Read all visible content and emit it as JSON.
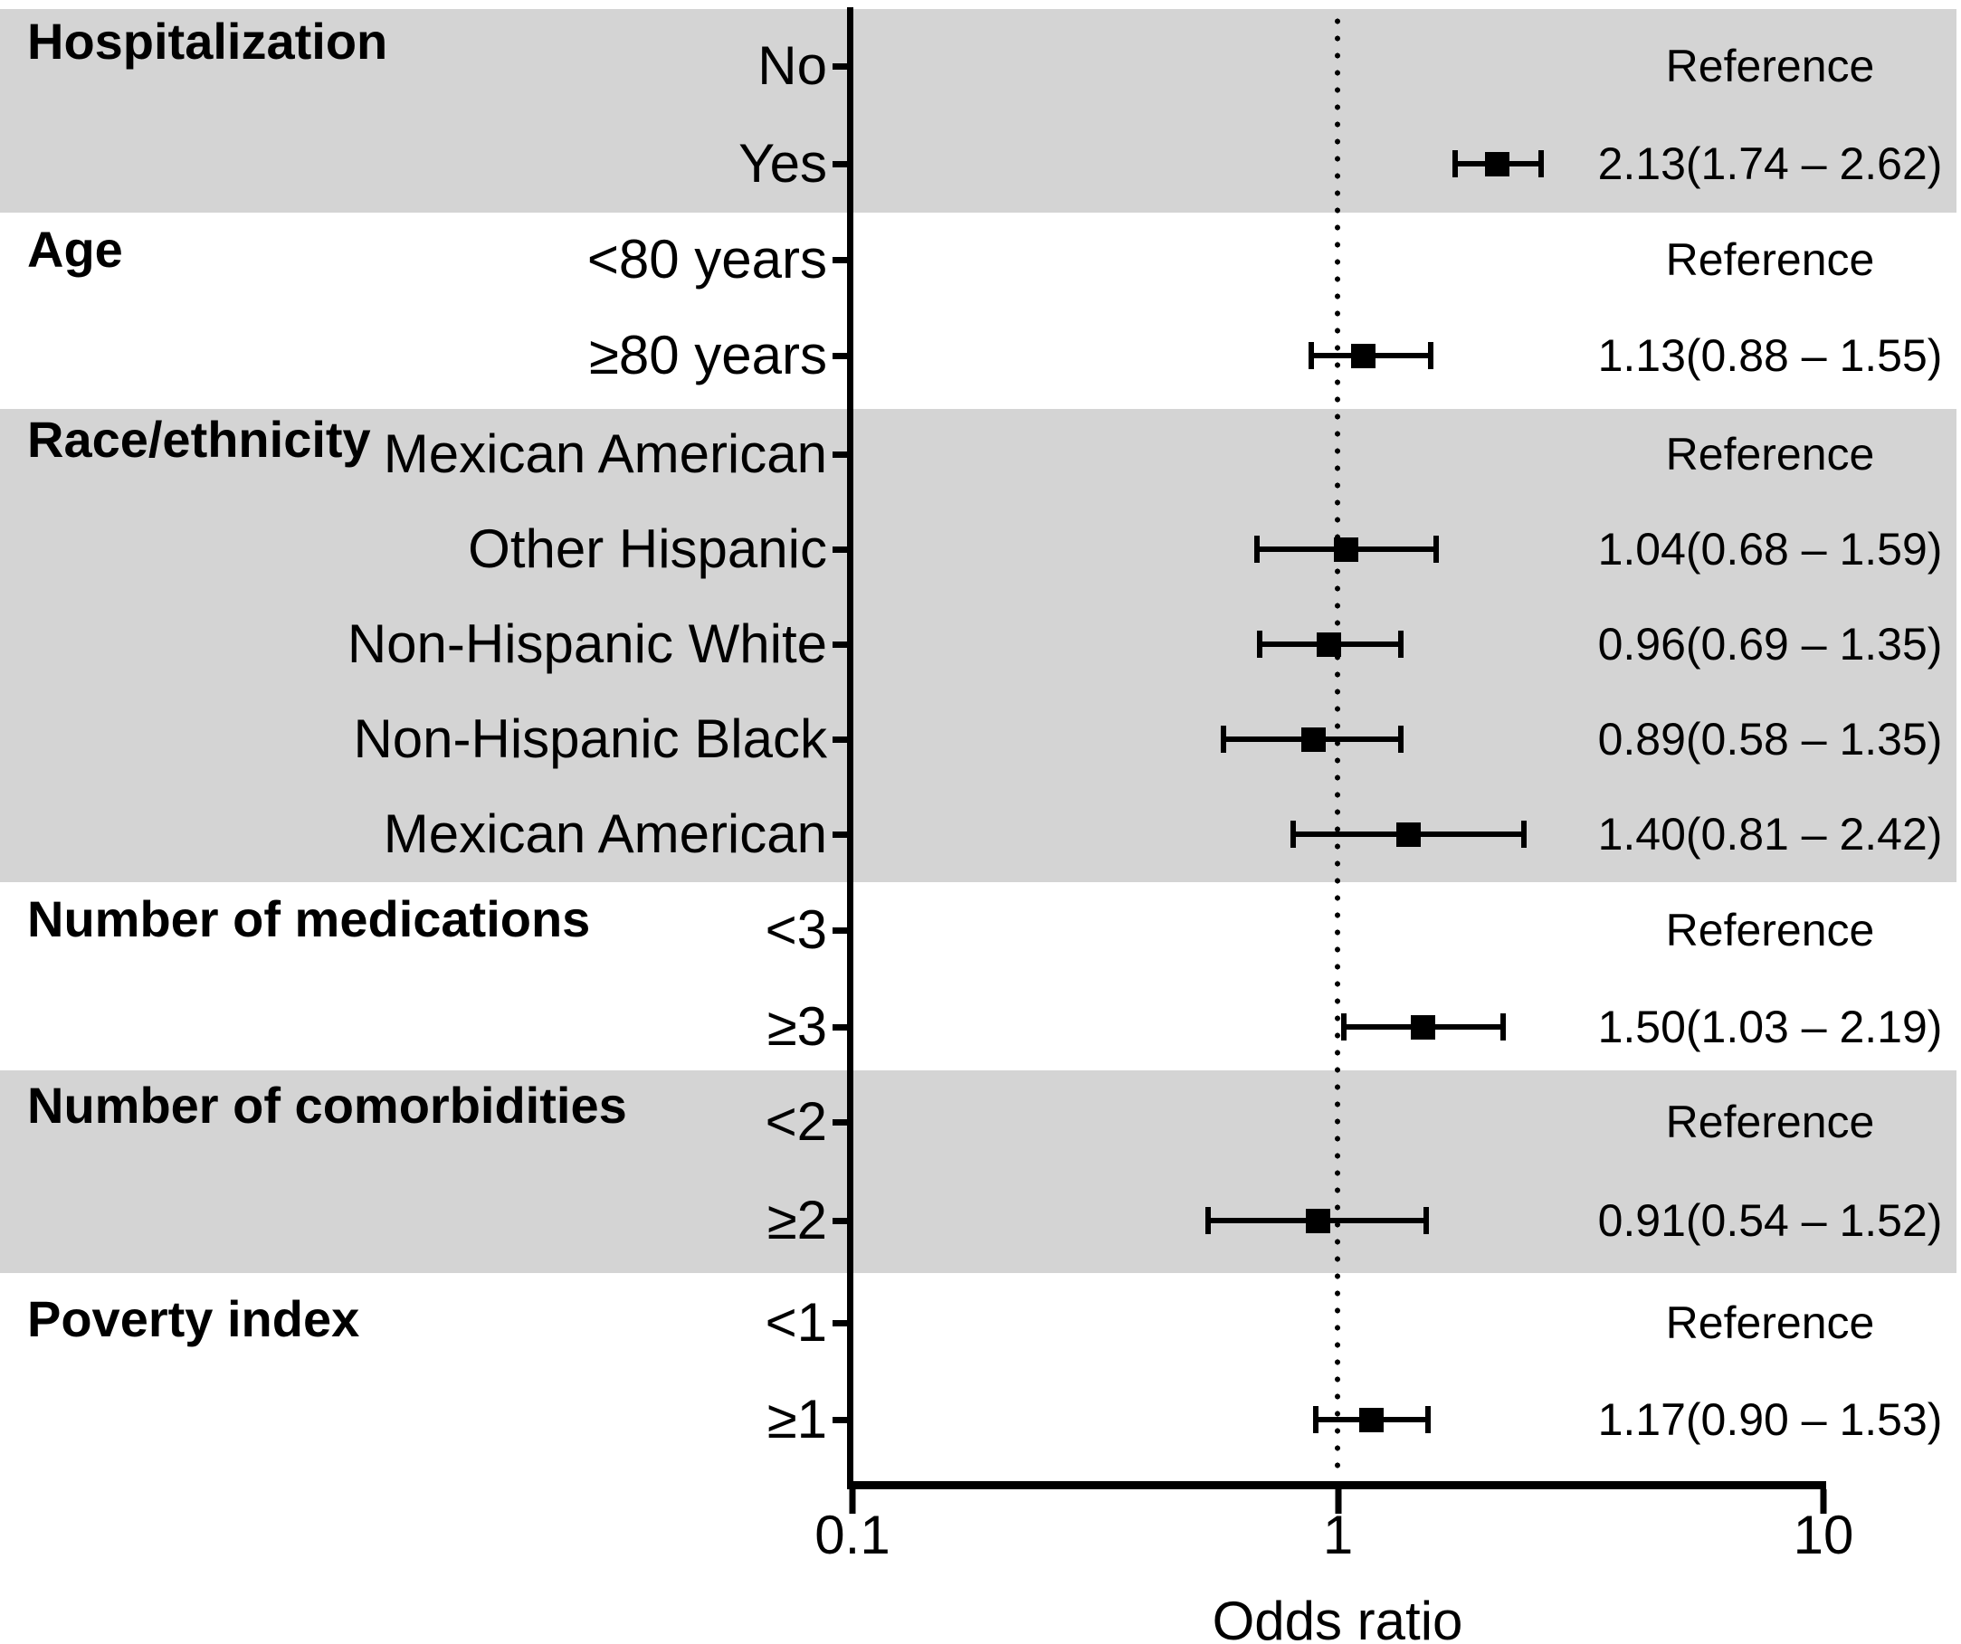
{
  "chart_data": {
    "type": "forest",
    "title": "",
    "xlabel": "Odds ratio",
    "x_scale": "log10",
    "x_range": [
      0.1,
      10
    ],
    "x_ticks": [
      0.1,
      1,
      10
    ],
    "x_tick_labels": [
      "0.1",
      "1",
      "10"
    ],
    "reference_line_x": 1,
    "legend_position": "none",
    "grid": false,
    "colors": {
      "band": "#d4d4d4",
      "marker": "#000000",
      "text": "#000000"
    },
    "sections": [
      {
        "category": "Hospitalization",
        "shaded": true,
        "rows": [
          {
            "label": "No",
            "value_text": "Reference",
            "or": null,
            "ci_low": null,
            "ci_high": null
          },
          {
            "label": "Yes",
            "value_text": "2.13(1.74 – 2.62)",
            "or": 2.13,
            "ci_low": 1.74,
            "ci_high": 2.62
          }
        ]
      },
      {
        "category": "Age",
        "shaded": false,
        "rows": [
          {
            "label": "<80 years",
            "value_text": "Reference",
            "or": null,
            "ci_low": null,
            "ci_high": null
          },
          {
            "label": "≥80 years",
            "value_text": "1.13(0.88 – 1.55)",
            "or": 1.13,
            "ci_low": 0.88,
            "ci_high": 1.55
          }
        ]
      },
      {
        "category": "Race/ethnicity",
        "shaded": true,
        "rows": [
          {
            "label": "Mexican American",
            "value_text": "Reference",
            "or": null,
            "ci_low": null,
            "ci_high": null
          },
          {
            "label": "Other Hispanic",
            "value_text": "1.04(0.68 – 1.59)",
            "or": 1.04,
            "ci_low": 0.68,
            "ci_high": 1.59
          },
          {
            "label": "Non-Hispanic White",
            "value_text": "0.96(0.69 – 1.35)",
            "or": 0.96,
            "ci_low": 0.69,
            "ci_high": 1.35
          },
          {
            "label": "Non-Hispanic Black",
            "value_text": "0.89(0.58 – 1.35)",
            "or": 0.89,
            "ci_low": 0.58,
            "ci_high": 1.35
          },
          {
            "label": "Mexican American",
            "value_text": "1.40(0.81 – 2.42)",
            "or": 1.4,
            "ci_low": 0.81,
            "ci_high": 2.42
          }
        ]
      },
      {
        "category": "Number of medications",
        "shaded": false,
        "rows": [
          {
            "label": "<3",
            "value_text": "Reference",
            "or": null,
            "ci_low": null,
            "ci_high": null
          },
          {
            "label": "≥3",
            "value_text": "1.50(1.03 – 2.19)",
            "or": 1.5,
            "ci_low": 1.03,
            "ci_high": 2.19
          }
        ]
      },
      {
        "category": "Number of comorbidities",
        "shaded": true,
        "rows": [
          {
            "label": "<2",
            "value_text": "Reference",
            "or": null,
            "ci_low": null,
            "ci_high": null
          },
          {
            "label": "≥2",
            "value_text": "0.91(0.54 – 1.52)",
            "or": 0.91,
            "ci_low": 0.54,
            "ci_high": 1.52
          }
        ]
      },
      {
        "category": "Poverty index",
        "shaded": false,
        "rows": [
          {
            "label": "<1",
            "value_text": "Reference",
            "or": null,
            "ci_low": null,
            "ci_high": null
          },
          {
            "label": "≥1",
            "value_text": "1.17(0.90 – 1.53)",
            "or": 1.17,
            "ci_low": 0.9,
            "ci_high": 1.53
          }
        ]
      }
    ]
  }
}
